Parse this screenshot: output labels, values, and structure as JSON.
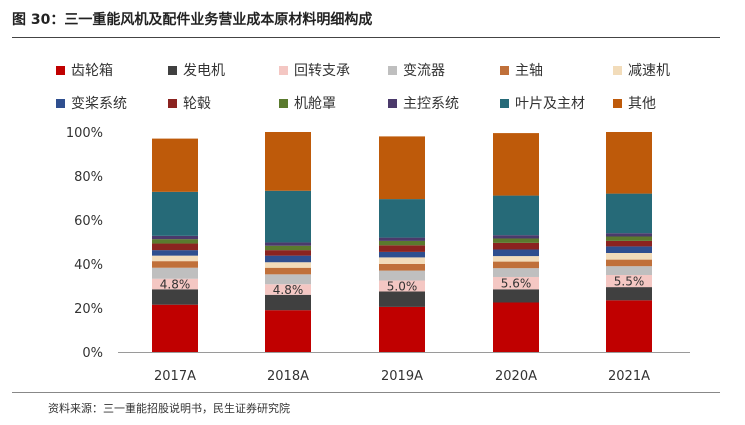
{
  "header": {
    "title": "图 30：三一重能风机及配件业务营业成本原材料明细构成",
    "source": "资料来源：三一重能招股说明书，民生证券研究院"
  },
  "chart_data": {
    "type": "bar",
    "stacked": true,
    "percent": true,
    "title": "",
    "xlabel": "",
    "ylabel": "",
    "ylim": [
      0,
      100
    ],
    "yticks": [
      "0%",
      "20%",
      "40%",
      "60%",
      "80%",
      "100%"
    ],
    "grid": false,
    "legend_position": "top",
    "categories": [
      "2017A",
      "2018A",
      "2019A",
      "2020A",
      "2021A"
    ],
    "series": [
      {
        "name": "齿轮箱",
        "color": "#C00000",
        "values": [
          21.5,
          19,
          20.5,
          22.5,
          23.5
        ]
      },
      {
        "name": "发电机",
        "color": "#404040",
        "values": [
          7,
          7,
          7,
          6,
          6
        ]
      },
      {
        "name": "回转支承",
        "color": "#F4C7C3",
        "values": [
          4.8,
          4.8,
          5.0,
          5.6,
          5.5
        ]
      },
      {
        "name": "变流器",
        "color": "#BFBFBF",
        "values": [
          5,
          4.5,
          4.5,
          4,
          4
        ]
      },
      {
        "name": "主轴",
        "color": "#C0703A",
        "values": [
          3,
          3,
          3,
          3,
          3
        ]
      },
      {
        "name": "减速机",
        "color": "#F2DCBA",
        "values": [
          2.5,
          2.5,
          3,
          2.5,
          3
        ]
      },
      {
        "name": "变桨系统",
        "color": "#2F4F8F",
        "values": [
          2.5,
          3,
          2.5,
          3,
          3
        ]
      },
      {
        "name": "轮毂",
        "color": "#8B2320",
        "values": [
          3,
          2.5,
          3,
          3,
          2.5
        ]
      },
      {
        "name": "机舱罩",
        "color": "#5A7A2E",
        "values": [
          2,
          2,
          2,
          2,
          2
        ]
      },
      {
        "name": "主控系统",
        "color": "#4B3A6B",
        "values": [
          1.5,
          1.5,
          1.5,
          1.5,
          1.5
        ]
      },
      {
        "name": "叶片及主材",
        "color": "#266A78",
        "values": [
          20,
          23.5,
          17.5,
          18,
          18
        ]
      },
      {
        "name": "其他",
        "color": "#BE5A0A",
        "values": [
          24.2,
          26.7,
          28.5,
          28.4,
          28.0
        ]
      }
    ],
    "data_labels": [
      {
        "series": "回转支承",
        "values": [
          "4.8%",
          "4.8%",
          "5.0%",
          "5.6%",
          "5.5%"
        ]
      }
    ]
  }
}
